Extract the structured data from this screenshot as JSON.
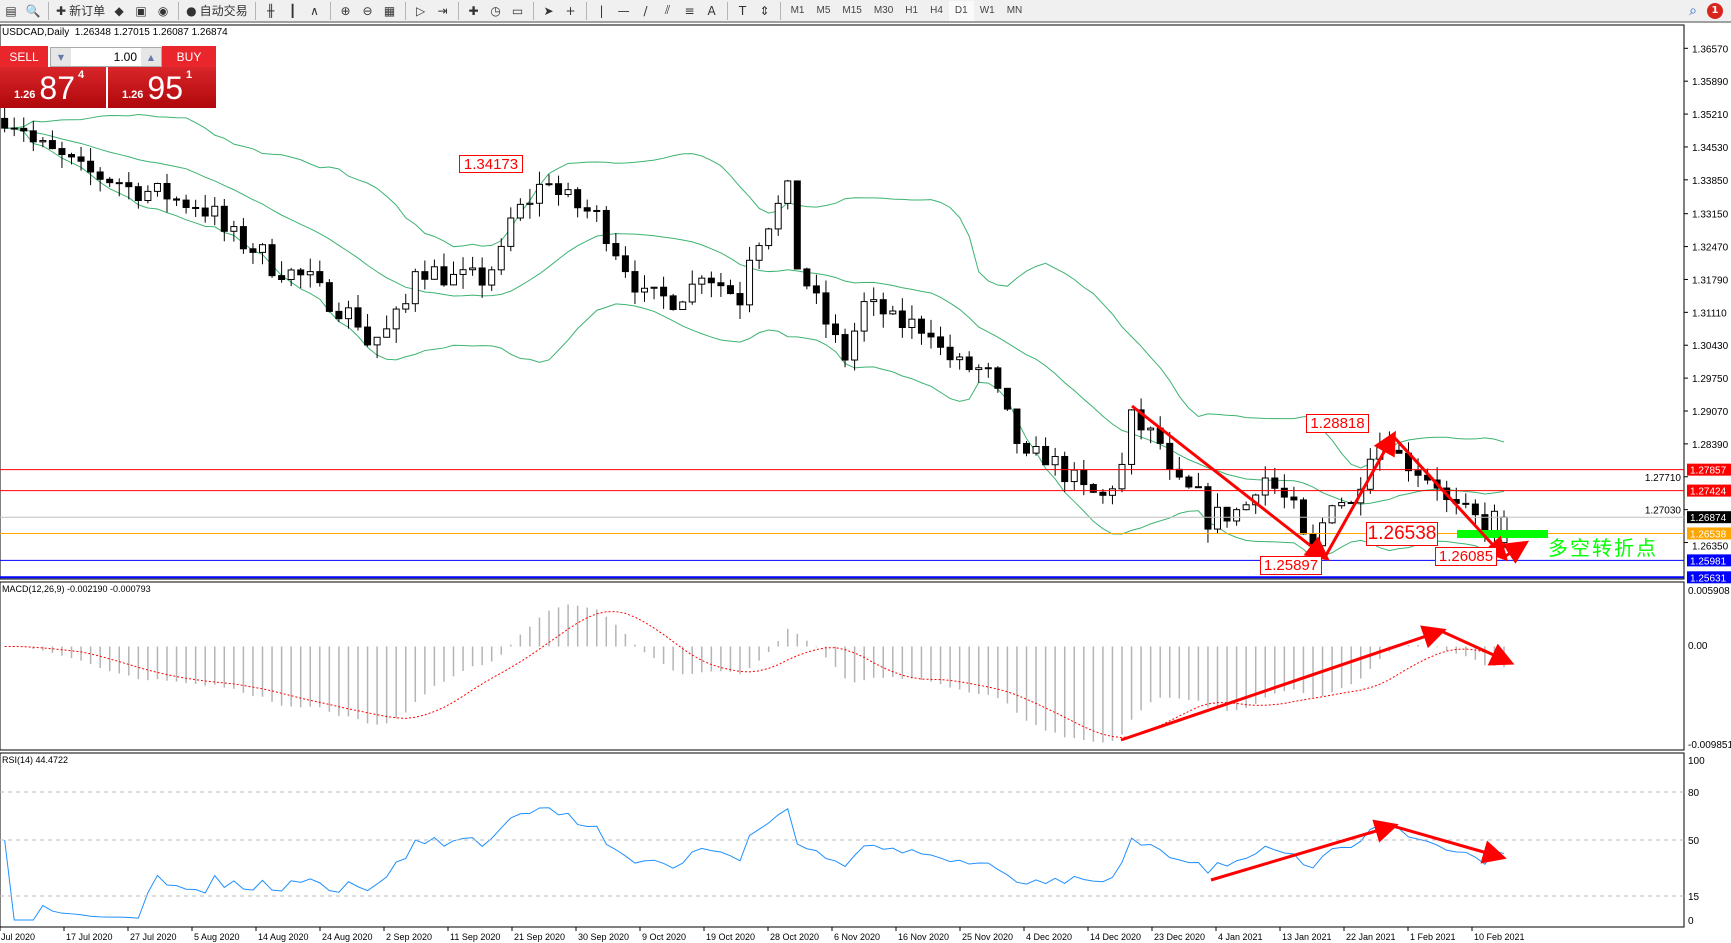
{
  "toolbar": {
    "new_order_label": "新订单",
    "auto_trade_label": "自动交易",
    "timeframes": [
      "M1",
      "M5",
      "M15",
      "M30",
      "H1",
      "H4",
      "D1",
      "W1",
      "MN"
    ],
    "active_timeframe": "D1",
    "notification_count": "1",
    "icons": [
      "new-chart-icon",
      "zoom-chart-icon",
      "new-order-icon",
      "history-icon",
      "navigator-icon",
      "signal-icon",
      "auto-trade-icon",
      "bar-chart-icon",
      "candlestick-icon",
      "line-chart-icon",
      "zoom-in-icon",
      "zoom-out-icon",
      "tile-windows-icon",
      "autoscroll-icon",
      "chart-shift-icon",
      "indicators-icon",
      "periods-icon",
      "templates-icon",
      "cursor-icon",
      "crosshair-icon",
      "vertical-line-icon",
      "horizontal-line-icon",
      "trendline-icon",
      "fibonacci-channel-icon",
      "fibonacci-icon",
      "text-icon",
      "text-label-icon",
      "arrows-icon",
      "search-icon",
      "chat-icon"
    ]
  },
  "chart": {
    "title": "USDCAD,Daily",
    "ohlc": "1.26348 1.27015 1.26087 1.26874"
  },
  "trade_panel": {
    "sell_label": "SELL",
    "buy_label": "BUY",
    "lot": "1.00",
    "sell_prefix": "1.26",
    "sell_big": "87",
    "sell_pip": "4",
    "buy_prefix": "1.26",
    "buy_big": "95",
    "buy_pip": "1"
  },
  "macd_label": "MACD(12,26,9) -0.002190 -0.000793",
  "rsi_label": "RSI(14) 44.4722",
  "annotations": {
    "high1": "1.34173",
    "high2": "1.28818",
    "pivot": "1.26538",
    "low1": "1.25897",
    "low2": "1.26085",
    "note": "多空转折点"
  },
  "colors": {
    "bull": "#ffffff",
    "bear": "#000000",
    "bands": "#3cb371",
    "macd_hist": "#b4b4b4",
    "macd_signal": "#ff0000",
    "rsi": "#1e90ff",
    "annotation": "#ff0000",
    "pivot_zone": "#00ff00"
  },
  "chart_data": {
    "type": "candlestick",
    "symbol": "USDCAD",
    "timeframe": "Daily",
    "price_ticks": [
      "1.36570",
      "1.35890",
      "1.35210",
      "1.34530",
      "1.33850",
      "1.33150",
      "1.32470",
      "1.31790",
      "1.31110",
      "1.30430",
      "1.29750",
      "1.29070",
      "1.28390",
      "1.27710",
      "1.27030",
      "1.26350"
    ],
    "ylim": [
      1.25631,
      1.3657
    ],
    "price_lines": [
      {
        "price": "1.27857",
        "color": "#ff0000"
      },
      {
        "price": "1.27424",
        "color": "#ff0000"
      },
      {
        "price": "1.26874",
        "color": "#000000",
        "line": "#c0c0c0"
      },
      {
        "price": "1.26538",
        "color": "#ffa500"
      },
      {
        "price": "1.25981",
        "color": "#0000ff"
      },
      {
        "price": "1.25631",
        "color": "#0000ff"
      }
    ],
    "date_labels": [
      "Jul 2020",
      "17 Jul 2020",
      "27 Jul 2020",
      "5 Aug 2020",
      "14 Aug 2020",
      "24 Aug 2020",
      "2 Sep 2020",
      "11 Sep 2020",
      "21 Sep 2020",
      "30 Sep 2020",
      "9 Oct 2020",
      "19 Oct 2020",
      "28 Oct 2020",
      "6 Nov 2020",
      "16 Nov 2020",
      "25 Nov 2020",
      "4 Dec 2020",
      "14 Dec 2020",
      "23 Dec 2020",
      "4 Jan 2021",
      "13 Jan 2021",
      "22 Jan 2021",
      "1 Feb 2021",
      "10 Feb 2021"
    ],
    "approx_closes": [
      [
        "2020-07-08",
        1.3517
      ],
      [
        "2020-07-17",
        1.3417
      ],
      [
        "2020-07-27",
        1.3368
      ],
      [
        "2020-08-05",
        1.3335
      ],
      [
        "2020-08-14",
        1.3232
      ],
      [
        "2020-08-24",
        1.3152
      ],
      [
        "2020-08-31",
        1.305
      ],
      [
        "2020-09-02",
        1.307
      ],
      [
        "2020-09-07",
        1.3209
      ],
      [
        "2020-09-11",
        1.318
      ],
      [
        "2020-09-16",
        1.318
      ],
      [
        "2020-09-21",
        1.33
      ],
      [
        "2020-09-25",
        1.3392
      ],
      [
        "2020-09-30",
        1.333
      ],
      [
        "2020-10-05",
        1.3277
      ],
      [
        "2020-10-09",
        1.314
      ],
      [
        "2020-10-14",
        1.314
      ],
      [
        "2020-10-19",
        1.32
      ],
      [
        "2020-10-23",
        1.314
      ],
      [
        "2020-10-28",
        1.33
      ],
      [
        "2020-10-30",
        1.3358
      ],
      [
        "2020-11-02",
        1.321
      ],
      [
        "2020-11-06",
        1.305
      ],
      [
        "2020-11-09",
        1.302
      ],
      [
        "2020-11-11",
        1.3125
      ],
      [
        "2020-11-16",
        1.309
      ],
      [
        "2020-11-20",
        1.308
      ],
      [
        "2020-11-25",
        1.3
      ],
      [
        "2020-11-30",
        1.298
      ],
      [
        "2020-12-04",
        1.28
      ],
      [
        "2020-12-08",
        1.2815
      ],
      [
        "2020-12-11",
        1.2762
      ],
      [
        "2020-12-16",
        1.2727
      ],
      [
        "2020-12-18",
        1.279
      ],
      [
        "2020-12-21",
        1.2889
      ],
      [
        "2020-12-24",
        1.284
      ],
      [
        "2020-12-29",
        1.275
      ],
      [
        "2021-01-04",
        1.2684
      ],
      [
        "2021-01-07",
        1.27
      ],
      [
        "2021-01-12",
        1.277
      ],
      [
        "2021-01-15",
        1.27
      ],
      [
        "2021-01-19",
        1.2617
      ],
      [
        "2021-01-21",
        1.273
      ],
      [
        "2021-01-25",
        1.271
      ],
      [
        "2021-01-27",
        1.283
      ],
      [
        "2021-01-29",
        1.285
      ],
      [
        "2021-02-02",
        1.28
      ],
      [
        "2021-02-05",
        1.276
      ],
      [
        "2021-02-09",
        1.27
      ],
      [
        "2021-02-12",
        1.2673
      ],
      [
        "2021-02-16",
        1.26874
      ]
    ],
    "indicators": {
      "bollinger": {
        "period": 20,
        "deviation": 2
      },
      "macd": {
        "fast": 12,
        "slow": 26,
        "signal": 9,
        "main": "-0.002190",
        "signal_value": "-0.000793",
        "ylim": [
          -0.009851,
          0.005908
        ],
        "ticks": [
          "0.005908",
          "0.00",
          "-0.009851"
        ]
      },
      "rsi": {
        "period": 14,
        "value": "44.4722",
        "levels": [
          "80",
          "50",
          "15"
        ],
        "ticks": [
          "100",
          "80",
          "50",
          "15",
          "0"
        ]
      }
    }
  }
}
